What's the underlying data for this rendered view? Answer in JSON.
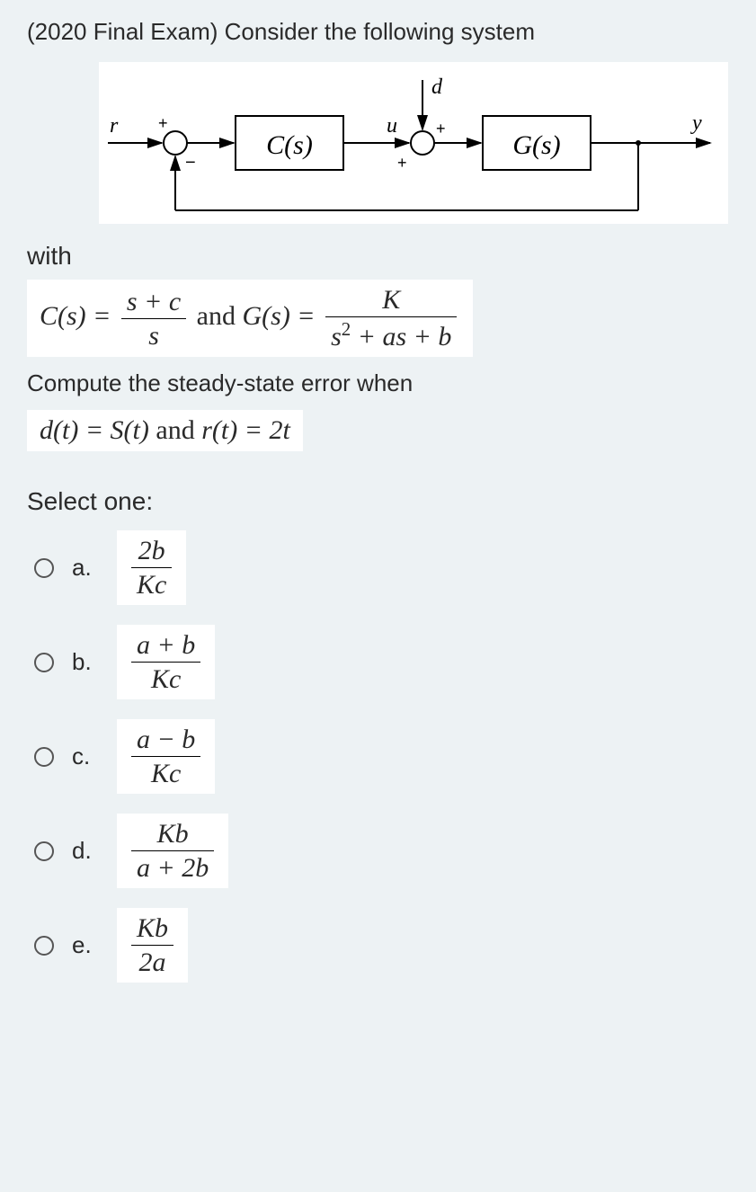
{
  "question": {
    "intro": "(2020 Final Exam) Consider the following system",
    "with_text": "with",
    "compute_text": "Compute the steady-state error when",
    "select_text": "Select one:"
  },
  "diagram": {
    "background": "#ffffff",
    "labels": {
      "r": "r",
      "u": "u",
      "d": "d",
      "y": "y",
      "C": "C(s)",
      "G": "G(s)",
      "plus1": "+",
      "minus1": "−",
      "plus2": "+",
      "plus3": "+"
    },
    "font_family": "Times New Roman",
    "font_style": "italic",
    "font_size": 26,
    "block_font_size": 30,
    "line_color": "#000000",
    "line_width": 2
  },
  "equations": {
    "cs_lhs": "C(s) = ",
    "cs_num": "s + c",
    "cs_den": "s",
    "and_text": " and ",
    "gs_lhs": "G(s) = ",
    "gs_num": "K",
    "gs_den_pre": "s",
    "gs_den_exp": "2",
    "gs_den_post": " + as + b",
    "dt": "d(t) = S(t)",
    "and2": " and ",
    "rt": "r(t) = 2t"
  },
  "options": [
    {
      "label": "a.",
      "num": "2b",
      "den": "Kc"
    },
    {
      "label": "b.",
      "num": "a + b",
      "den": "Kc"
    },
    {
      "label": "c.",
      "num": "a − b",
      "den": "Kc"
    },
    {
      "label": "d.",
      "num": "Kb",
      "den": "a + 2b"
    },
    {
      "label": "e.",
      "num": "Kb",
      "den": "2a"
    }
  ],
  "colors": {
    "page_bg": "#edf2f4",
    "box_bg": "#ffffff",
    "text": "#2a2a2a",
    "radio_border": "#555555"
  }
}
